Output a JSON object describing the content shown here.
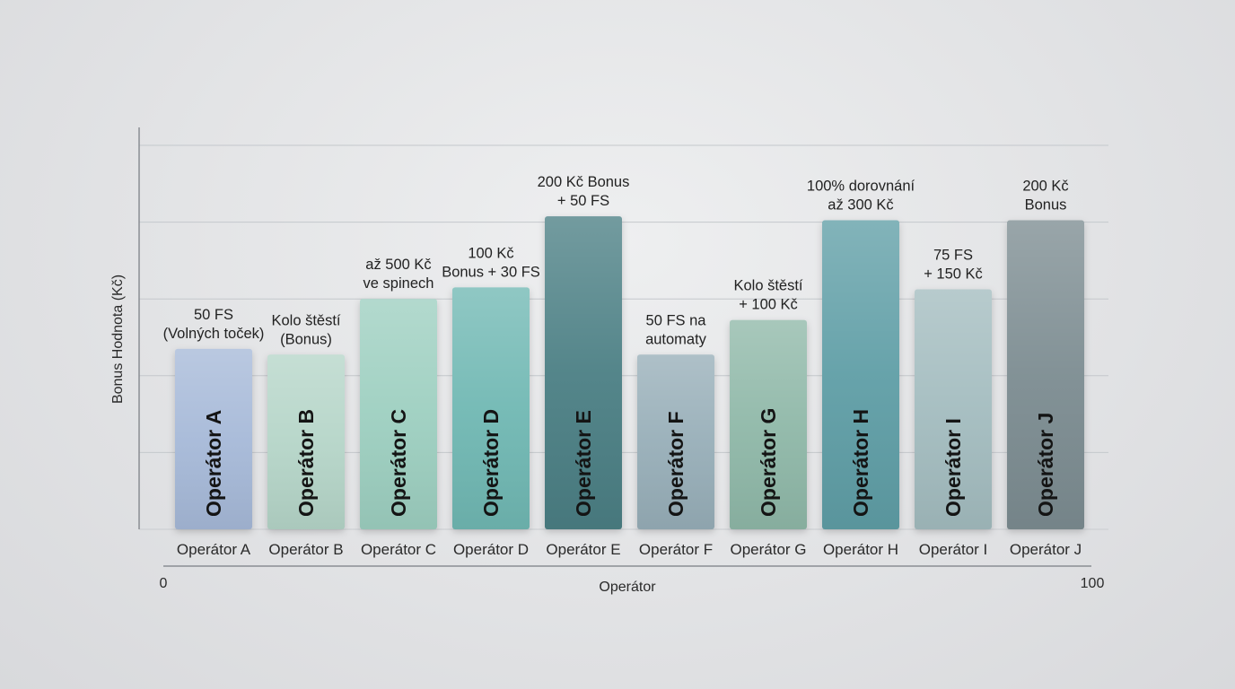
{
  "chart_data": {
    "type": "bar",
    "title": "",
    "xlabel": "Operátor",
    "ylabel": "Bonus Hodnota (Kč)",
    "categories": [
      "Operátor A",
      "Operátor B",
      "Operátor C",
      "Operátor D",
      "Operátor E",
      "Operátor F",
      "Operátor G",
      "Operátor H",
      "Operátor I",
      "Operátor J"
    ],
    "values": [
      47,
      45.5,
      60,
      63,
      81.5,
      45.5,
      54.5,
      80.5,
      62.5,
      80.5
    ],
    "bar_labels": [
      "Operátor A",
      "Operátor B",
      "Operátor C",
      "Operátor D",
      "Operátor E",
      "Operátor F",
      "Operátor G",
      "Operátor H",
      "Operátor I",
      "Operátor J"
    ],
    "annotations": [
      [
        "50 FS",
        "(Volných toček)"
      ],
      [
        "Kolo štěstí",
        "(Bonus)"
      ],
      [
        "až 500 Kč",
        "ve spinech"
      ],
      [
        "100 Kč",
        "Bonus + 30 FS"
      ],
      [
        "200 Kč Bonus",
        "+ 50 FS"
      ],
      [
        "50 FS na",
        "automaty"
      ],
      [
        "Kolo štěstí",
        "+ 100 Kč"
      ],
      [
        "100% dorovnání",
        "až 300 Kč"
      ],
      [
        "75 FS",
        "+ 150 Kč"
      ],
      [
        "200 Kč",
        "Bonus"
      ]
    ],
    "colors": [
      "#a6b9d8",
      "#b5d5c8",
      "#9dcfc0",
      "#6fb8b3",
      "#4b7f84",
      "#97aeb8",
      "#8fb8a8",
      "#5f9ea6",
      "#a3bcbf",
      "#7b8c91"
    ],
    "x_axis_range": [
      "0",
      "100"
    ],
    "ylim": [
      0,
      100
    ],
    "grid": true,
    "legend": "none"
  }
}
